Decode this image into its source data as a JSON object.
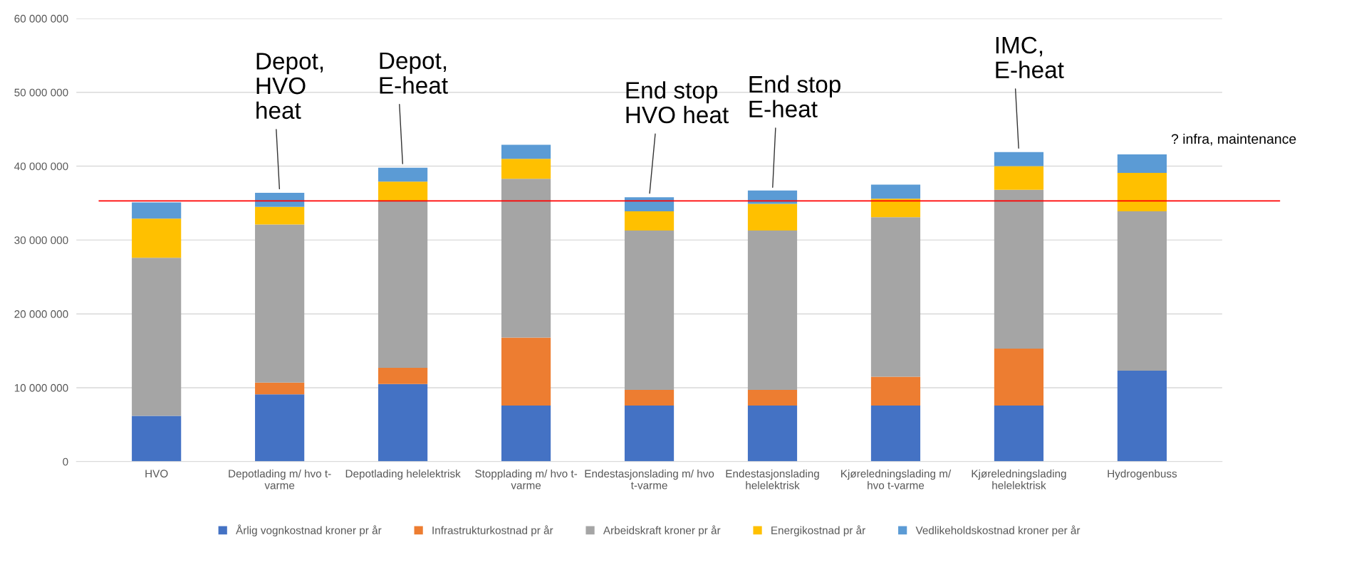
{
  "chart_data": {
    "type": "bar",
    "stacked": true,
    "categories": [
      "HVO",
      "Depotlading m/ hvo t-\nvarme",
      "Depotlading helelektrisk",
      "Stopplading m/ hvo t-\nvarme",
      "Endestasjonslading m/ hvo\nt-varme",
      "Endestasjonslading\nhelelektrisk",
      "Kjøreledningslading m/\nhvo t-varme",
      "Kjøreledningslading\nhelelektrisk",
      "Hydrogenbuss"
    ],
    "series": [
      {
        "name": "Årlig vognkostnad kroner pr år",
        "color": "#4472c4",
        "values": [
          6200000,
          9100000,
          10500000,
          7600000,
          7600000,
          7600000,
          7600000,
          7600000,
          12300000
        ]
      },
      {
        "name": "Infrastrukturkostnad pr år",
        "color": "#ed7d31",
        "values": [
          0,
          1600000,
          2200000,
          9200000,
          2100000,
          2100000,
          3900000,
          7700000,
          0
        ]
      },
      {
        "name": "Arbeidskraft kroner pr år",
        "color": "#a5a5a5",
        "values": [
          21400000,
          21400000,
          22600000,
          21500000,
          21600000,
          21600000,
          21600000,
          21500000,
          21600000
        ]
      },
      {
        "name": "Energikostnad pr år",
        "color": "#ffc000",
        "values": [
          5300000,
          2400000,
          2600000,
          2700000,
          2600000,
          3600000,
          2500000,
          3200000,
          5200000
        ]
      },
      {
        "name": "Vedlikeholdskostnad kroner per år",
        "color": "#5b9bd5",
        "values": [
          2200000,
          1900000,
          1900000,
          1900000,
          1900000,
          1800000,
          1900000,
          1900000,
          2500000
        ]
      }
    ],
    "ylim": [
      0,
      60000000
    ],
    "yticks": [
      {
        "value": 0,
        "label": "0"
      },
      {
        "value": 10000000,
        "label": "10 000 000"
      },
      {
        "value": 20000000,
        "label": "20 000 000"
      },
      {
        "value": 30000000,
        "label": "30 000 000"
      },
      {
        "value": 40000000,
        "label": "40 000 000"
      },
      {
        "value": 50000000,
        "label": "50 000 000"
      },
      {
        "value": 60000000,
        "label": "60 000 000"
      }
    ],
    "grid": "y",
    "legend": "bottom",
    "ref_lines": [
      {
        "axis": "y",
        "value": 35300000,
        "color": "#ff0000"
      }
    ],
    "annotations": [
      {
        "text": "Depot,\nHVO\nheat",
        "x": "Depotlading m/ hvo t-\nvarme",
        "y": 36400000
      },
      {
        "text": "Depot,\nE-heat",
        "x": "Depotlading helelektrisk",
        "y": 39800000
      },
      {
        "text": "End stop\nHVO heat",
        "x": "Endestasjonslading m/ hvo\nt-varme",
        "y": 35800000
      },
      {
        "text": "End stop\nE-heat",
        "x": "Endestasjonslading\nhelelektrisk",
        "y": 36600000
      },
      {
        "text": "IMC,\nE-heat",
        "x": "Kjøreledningslading\nhelelektrisk",
        "y": 41900000
      },
      "? infra, maintenance"
    ]
  }
}
